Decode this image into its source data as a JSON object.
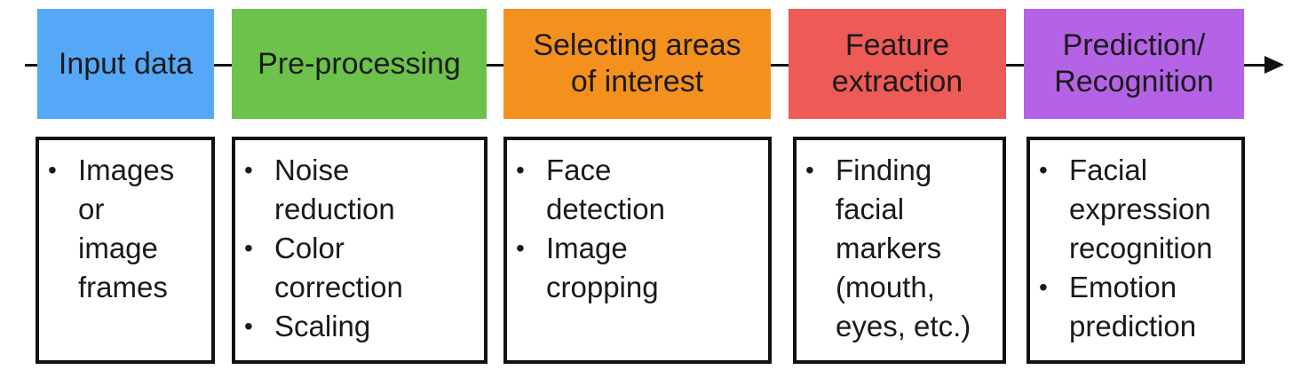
{
  "colors": {
    "stage_1": "#55a8f7",
    "stage_2": "#6cc24a",
    "stage_3": "#f4901e",
    "stage_4": "#ee5a56",
    "stage_5": "#b563e6",
    "line": "#111111"
  },
  "stages": [
    {
      "label": "Input data",
      "details": [
        "Images\nor\nimage\nframes"
      ]
    },
    {
      "label": "Pre-processing",
      "details": [
        "Noise\nreduction",
        "Color\ncorrection",
        "Scaling"
      ]
    },
    {
      "label": "Selecting areas\nof interest",
      "details": [
        "Face\ndetection",
        "Image\ncropping"
      ]
    },
    {
      "label": "Feature\nextraction",
      "details": [
        "Finding\nfacial\nmarkers\n(mouth,\neyes, etc.)"
      ]
    },
    {
      "label": "Prediction/\nRecognition",
      "details": [
        "Facial\nexpression\nrecognition",
        "Emotion\nprediction"
      ]
    }
  ]
}
